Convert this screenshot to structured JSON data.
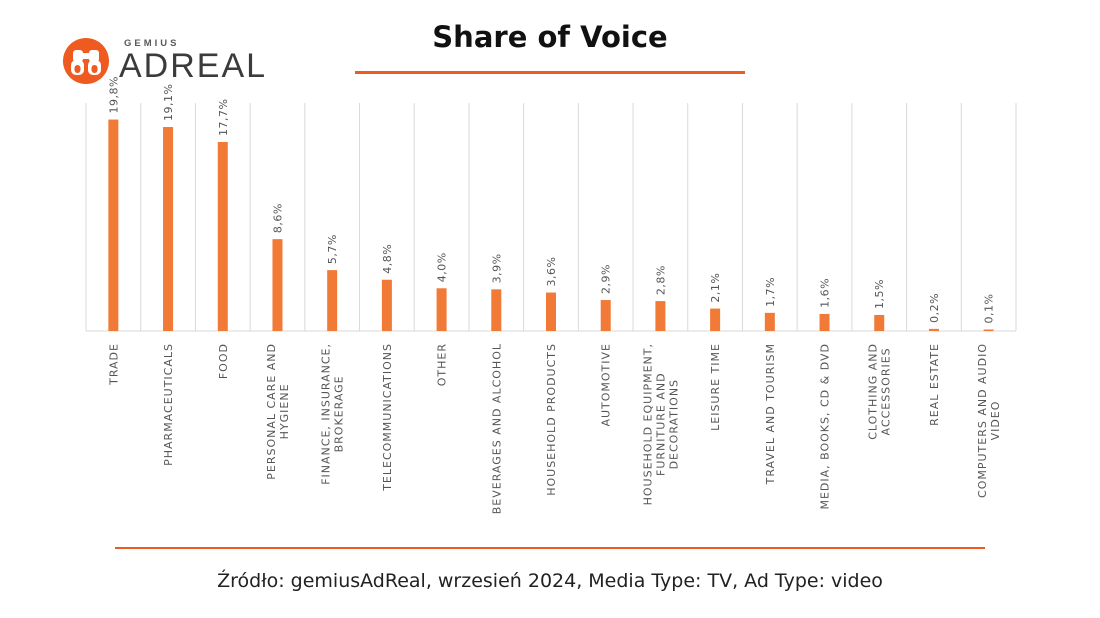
{
  "logo": {
    "company": "GEMIUS",
    "brand": "ADREAL",
    "icon": "binoculars-icon"
  },
  "title": "Share of Voice",
  "source": "Źródło: gemiusAdReal, wrzesień 2024, Media Type: TV, Ad Type: video",
  "colors": {
    "accent": "#ee5a1f",
    "bar": "#f07a36",
    "grid": "#d9d9d9",
    "text": "#555555"
  },
  "chart_data": {
    "type": "bar",
    "categories": [
      "TRADE",
      "PHARMACEUTICALS",
      "FOOD",
      "PERSONAL CARE AND HYGIENE",
      "FINANCE, INSURANCE, BROKERAGE",
      "TELECOMMUNICATIONS",
      "OTHER",
      "BEVERAGES AND ALCOHOL",
      "HOUSEHOLD PRODUCTS",
      "AUTOMOTIVE",
      "HOUSEHOLD EQUIPMENT, FURNITURE AND DECORATIONS",
      "LEISURE TIME",
      "TRAVEL AND TOURISM",
      "MEDIA, BOOKS, CD & DVD",
      "CLOTHING AND ACCESSORIES",
      "REAL ESTATE",
      "COMPUTERS AND AUDIO VIDEO"
    ],
    "category_lines": [
      [
        "TRADE"
      ],
      [
        "PHARMACEUTICALS"
      ],
      [
        "FOOD"
      ],
      [
        "PERSONAL CARE AND",
        "HYGIENE"
      ],
      [
        "FINANCE, INSURANCE,",
        "BROKERAGE"
      ],
      [
        "TELECOMMUNICATIONS"
      ],
      [
        "OTHER"
      ],
      [
        "BEVERAGES AND ALCOHOL"
      ],
      [
        "HOUSEHOLD PRODUCTS"
      ],
      [
        "AUTOMOTIVE"
      ],
      [
        "HOUSEHOLD EQUIPMENT,",
        "FURNITURE AND",
        "DECORATIONS"
      ],
      [
        "LEISURE TIME"
      ],
      [
        "TRAVEL AND TOURISM"
      ],
      [
        "MEDIA, BOOKS, CD & DVD"
      ],
      [
        "CLOTHING AND",
        "ACCESSORIES"
      ],
      [
        "REAL ESTATE"
      ],
      [
        "COMPUTERS AND AUDIO",
        "VIDEO"
      ]
    ],
    "values": [
      19.8,
      19.1,
      17.7,
      8.6,
      5.7,
      4.8,
      4.0,
      3.9,
      3.6,
      2.9,
      2.8,
      2.1,
      1.7,
      1.6,
      1.5,
      0.2,
      0.1
    ],
    "labels": [
      "19,8%",
      "19,1%",
      "17,7%",
      "8,6%",
      "5,7%",
      "4,8%",
      "4,0%",
      "3,9%",
      "3,6%",
      "2,9%",
      "2,8%",
      "2,1%",
      "1,7%",
      "1,6%",
      "1,5%",
      "0,2%",
      "0,1%"
    ],
    "ylim": [
      0,
      20.6
    ],
    "grid": "vertical",
    "legend": "none"
  }
}
